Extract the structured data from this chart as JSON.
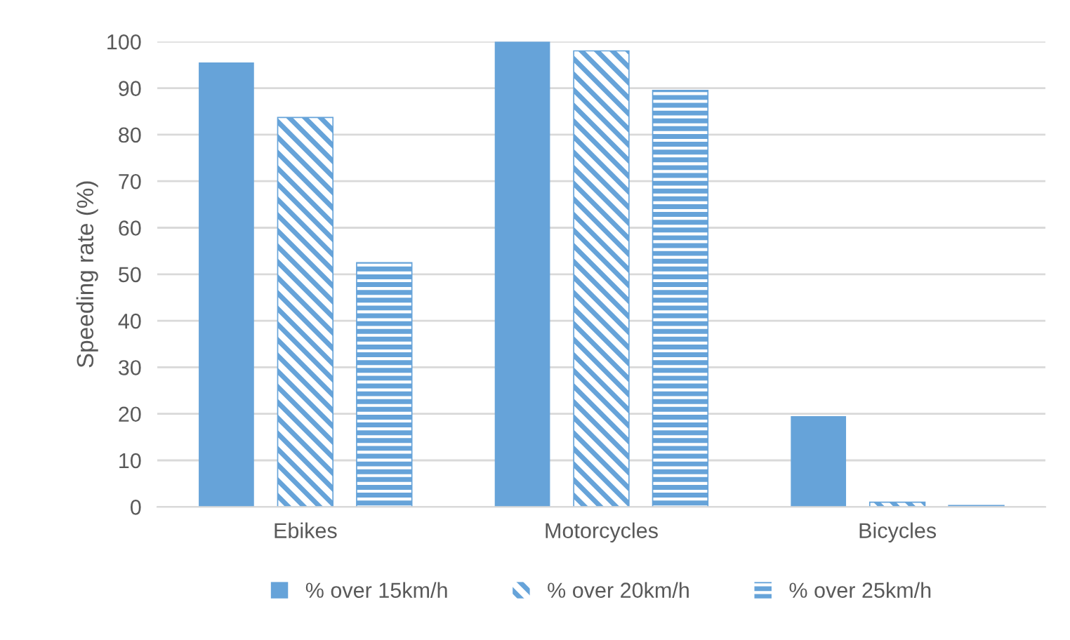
{
  "chart_data": {
    "type": "bar",
    "ylabel": "Speeding rate (%)",
    "categories": [
      "Ebikes",
      "Motorcycles",
      "Bicycles"
    ],
    "series": [
      {
        "name": "% over 15km/h",
        "color": "#66a3d9",
        "values": [
          95.5,
          100,
          19.5
        ]
      },
      {
        "name": "% over 20km/h",
        "color": "#66a3d9",
        "values": [
          83.7,
          98,
          1
        ]
      },
      {
        "name": "% over 25km/h",
        "color": "#66a3d9",
        "values": [
          52.5,
          89.5,
          0.3
        ]
      }
    ],
    "ylim": [
      0,
      100
    ],
    "yticks": [
      0,
      10,
      20,
      30,
      40,
      50,
      60,
      70,
      80,
      90,
      100
    ],
    "grid": "y",
    "legend": "bottom"
  }
}
